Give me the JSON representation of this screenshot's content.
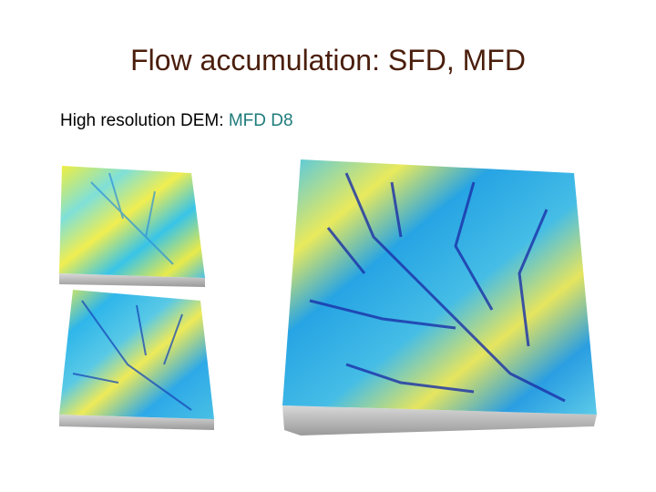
{
  "title": "Flow accumulation: SFD, MFD",
  "subtitle": {
    "text": "High resolution DEM:",
    "highlight": "MFD D8"
  }
}
